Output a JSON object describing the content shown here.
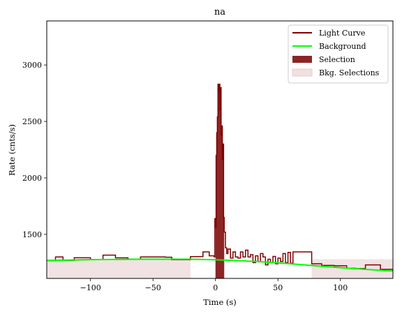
{
  "chart_data": {
    "type": "line",
    "title": "na",
    "xlabel": "Time (s)",
    "ylabel": "Rate (cnts/s)",
    "xlim": [
      -135,
      142
    ],
    "ylim": [
      1110,
      3390
    ],
    "xticks": [
      -100,
      -50,
      0,
      50,
      100
    ],
    "yticks": [
      1500,
      2000,
      2500,
      3000
    ],
    "grid": false,
    "legend_position": "top-right",
    "colors": {
      "light_curve": "#7f0000",
      "background": "#00ff00",
      "selection": "#8c2525",
      "bkg_selection": "#f0e0e0"
    },
    "legend": [
      {
        "key": "light_curve",
        "label": "Light Curve",
        "kind": "line"
      },
      {
        "key": "background",
        "label": "Background",
        "kind": "line"
      },
      {
        "key": "selection",
        "label": "Selection",
        "kind": "patch"
      },
      {
        "key": "bkg_selection",
        "label": "Bkg. Selections",
        "kind": "patch"
      }
    ],
    "bkg_selections": [
      [
        -135,
        -20
      ],
      [
        77,
        142
      ]
    ],
    "selection_range": [
      0,
      7
    ],
    "background": {
      "x": [
        -135,
        -100,
        -60,
        -20,
        0,
        20,
        40,
        60,
        80,
        100,
        120,
        142
      ],
      "y": [
        1268,
        1276,
        1280,
        1280,
        1275,
        1267,
        1255,
        1240,
        1222,
        1205,
        1190,
        1175
      ]
    },
    "light_curve": {
      "edges": [
        -135,
        -128,
        -122,
        -113,
        -100,
        -90,
        -80,
        -70,
        -60,
        -50,
        -40,
        -35,
        -28,
        -20,
        -10,
        -5,
        -1,
        -0.5,
        0,
        0.5,
        1,
        1.5,
        2,
        2.5,
        3,
        3.5,
        4,
        4.5,
        5,
        5.5,
        6,
        6.5,
        7,
        8,
        9,
        10,
        12,
        14,
        16,
        18,
        20,
        22,
        24,
        26,
        28,
        30,
        32,
        34,
        36,
        38,
        40,
        42,
        44,
        46,
        48,
        50,
        52,
        54,
        56,
        58,
        60,
        62,
        77,
        85,
        95,
        105,
        112,
        120,
        132,
        142
      ],
      "values": [
        1268,
        1300,
        1270,
        1293,
        1278,
        1316,
        1292,
        1281,
        1300,
        1300,
        1298,
        1275,
        1275,
        1303,
        1345,
        1310,
        1300,
        1640,
        1560,
        2200,
        2400,
        2540,
        2830,
        2760,
        2830,
        2600,
        2800,
        2380,
        2460,
        2160,
        2300,
        1650,
        1520,
        1380,
        1330,
        1370,
        1290,
        1345,
        1300,
        1290,
        1345,
        1300,
        1360,
        1300,
        1320,
        1250,
        1310,
        1260,
        1330,
        1300,
        1230,
        1280,
        1250,
        1305,
        1240,
        1290,
        1260,
        1330,
        1250,
        1340,
        1245,
        1345,
        1240,
        1225,
        1222,
        1200,
        1197,
        1230,
        1190,
        1180
      ]
    }
  }
}
